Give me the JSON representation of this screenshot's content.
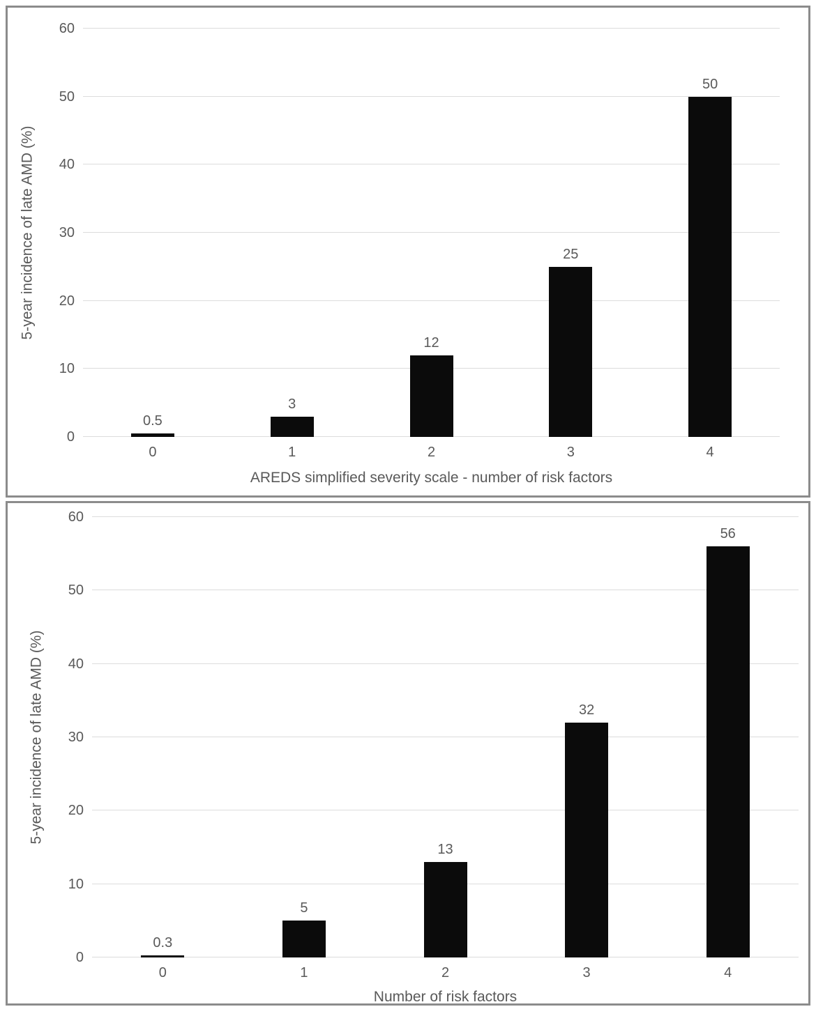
{
  "page": {
    "background": "#ffffff",
    "panel_border_color": "#8c8c8c"
  },
  "chart_data": [
    {
      "type": "bar",
      "title": "",
      "categories": [
        "0",
        "1",
        "2",
        "3",
        "4"
      ],
      "values": [
        0.5,
        3,
        12,
        25,
        50
      ],
      "data_labels": [
        "0.5",
        "3",
        "12",
        "25",
        "50"
      ],
      "xlabel": "AREDS simplified severity scale - number of risk factors",
      "ylabel": "5-year incidence of late AMD (%)",
      "ylim": [
        0,
        60
      ],
      "yticks": [
        0,
        10,
        20,
        30,
        40,
        50,
        60
      ],
      "grid": true,
      "legend": "none",
      "bar_color": "#0b0b0b",
      "gridline_color": "#dcdcdc",
      "label_color": "#595959"
    },
    {
      "type": "bar",
      "title": "",
      "categories": [
        "0",
        "1",
        "2",
        "3",
        "4"
      ],
      "values": [
        0.3,
        5,
        13,
        32,
        56
      ],
      "data_labels": [
        "0.3",
        "5",
        "13",
        "32",
        "56"
      ],
      "xlabel": "Number of risk factors",
      "ylabel": "5-year incidence of late AMD (%)",
      "ylim": [
        0,
        60
      ],
      "yticks": [
        0,
        10,
        20,
        30,
        40,
        50,
        60
      ],
      "grid": true,
      "legend": "none",
      "bar_color": "#0b0b0b",
      "gridline_color": "#dcdcdc",
      "label_color": "#595959"
    }
  ]
}
